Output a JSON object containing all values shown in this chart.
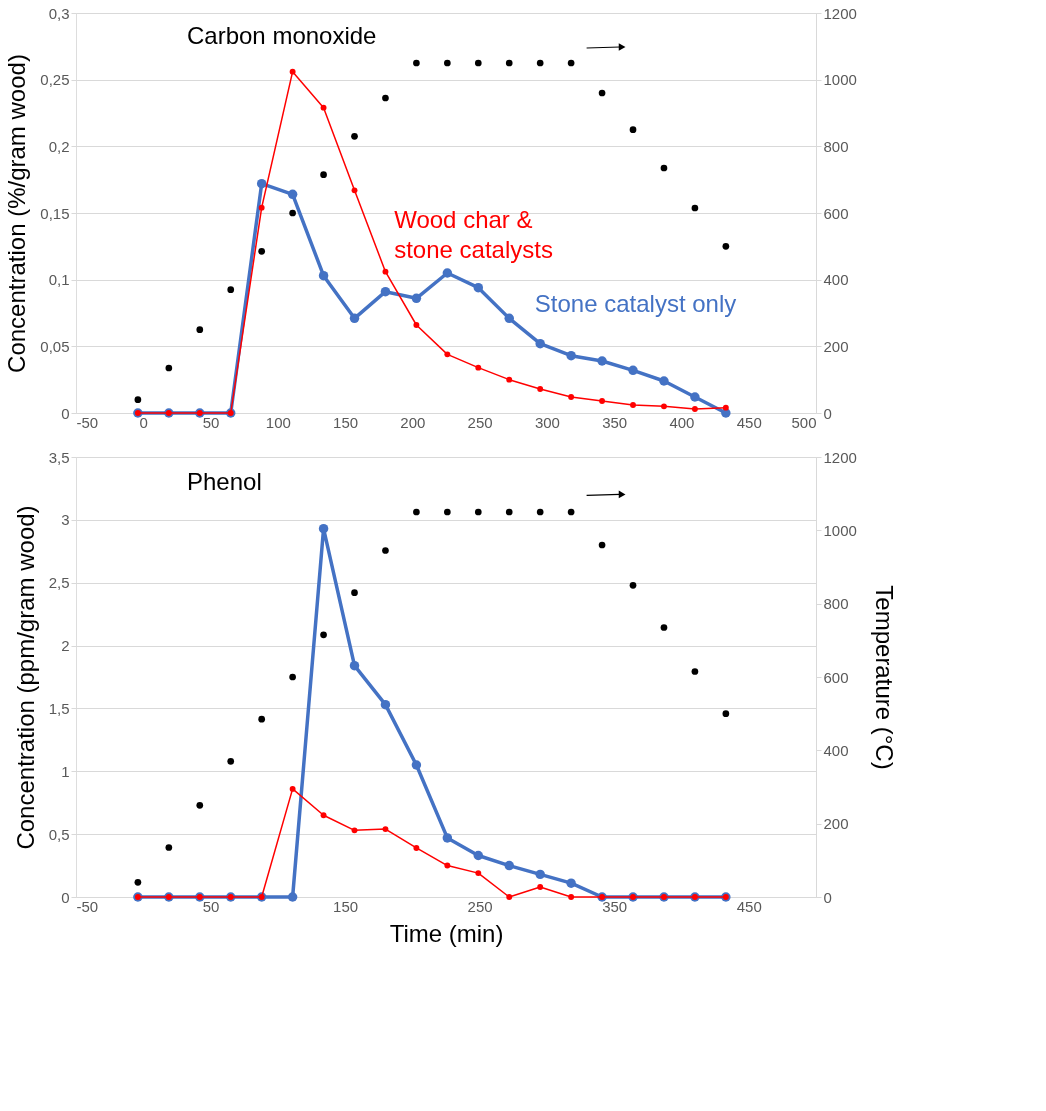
{
  "chart_data": [
    {
      "type": "line",
      "title": "Carbon monoxide",
      "ylabel": "Concentration (%/gram wood)",
      "x": [
        -4,
        19,
        42,
        65,
        88,
        111,
        134,
        157,
        180,
        203,
        226,
        249,
        272,
        295,
        318,
        341,
        364,
        387,
        410,
        433
      ],
      "series": [
        {
          "type": "scatter",
          "axis": "y2",
          "color": "#000000",
          "values": [
            40,
            135,
            250,
            370,
            485,
            600,
            715,
            830,
            945,
            1050,
            1050,
            1050,
            1050,
            1050,
            1050,
            960,
            850,
            735,
            615,
            500
          ]
        },
        {
          "name": "Stone catalyst only",
          "color": "#4472c4",
          "values": [
            0,
            0,
            0,
            0,
            0.172,
            0.164,
            0.103,
            0.071,
            0.091,
            0.086,
            0.105,
            0.094,
            0.071,
            0.052,
            0.043,
            0.039,
            0.032,
            0.024,
            0.012,
            0
          ]
        },
        {
          "name": "Wood char & stone catalysts",
          "color": "#ff0000",
          "values": [
            0,
            0,
            0,
            0,
            0.154,
            0.256,
            0.229,
            0.167,
            0.106,
            0.066,
            0.044,
            0.034,
            0.025,
            0.018,
            0.012,
            0.009,
            0.006,
            0.005,
            0.003,
            0.004
          ]
        }
      ],
      "xlim": [
        -50,
        500
      ],
      "xticks": [
        -50,
        0,
        50,
        100,
        150,
        200,
        250,
        300,
        350,
        400,
        450,
        500
      ],
      "ylim": [
        0,
        0.3
      ],
      "yticks": [
        0,
        {
          "value": 0.05,
          "label": "0,05"
        },
        {
          "value": 0.1,
          "label": "0,1"
        },
        {
          "value": 0.15,
          "label": "0,15"
        },
        {
          "value": 0.2,
          "label": "0,2"
        },
        {
          "value": 0.25,
          "label": "0,25"
        },
        {
          "value": 0.3,
          "label": "0,3"
        }
      ],
      "y2lim": [
        0,
        1200
      ],
      "y2ticks": [
        0,
        200,
        400,
        600,
        800,
        1000,
        1200
      ],
      "grid": "y",
      "marker": "circle",
      "line_style": "solid"
    },
    {
      "type": "line",
      "title": "Phenol",
      "xlabel": "Time (min)",
      "ylabel": "Concentration (ppm/gram wood)",
      "y2label": "Temperature (°C)",
      "x": [
        -4,
        19,
        42,
        65,
        88,
        111,
        134,
        157,
        180,
        203,
        226,
        249,
        272,
        295,
        318,
        341,
        364,
        387,
        410,
        433
      ],
      "series": [
        {
          "type": "scatter",
          "axis": "y2",
          "color": "#000000",
          "values": [
            40,
            135,
            250,
            370,
            485,
            600,
            715,
            830,
            945,
            1050,
            1050,
            1050,
            1050,
            1050,
            1050,
            960,
            850,
            735,
            615,
            500
          ]
        },
        {
          "color": "#4472c4",
          "values": [
            0,
            0,
            0,
            0,
            0,
            0,
            2.93,
            1.84,
            1.53,
            1.05,
            0.47,
            0.33,
            0.25,
            0.18,
            0.11,
            0,
            0,
            0,
            0,
            0
          ]
        },
        {
          "color": "#ff0000",
          "values": [
            0,
            0,
            0,
            0,
            0,
            0.86,
            0.65,
            0.53,
            0.54,
            0.39,
            0.25,
            0.19,
            0,
            0.08,
            0,
            0,
            0,
            0,
            0,
            0
          ]
        }
      ],
      "xlim": [
        -50,
        500
      ],
      "xticks": [
        -50,
        50,
        150,
        250,
        350,
        450
      ],
      "ylim": [
        0,
        3.5
      ],
      "yticks": [
        0,
        {
          "value": 0.5,
          "label": "0,5"
        },
        1,
        {
          "value": 1.5,
          "label": "1,5"
        },
        2,
        {
          "value": 2.5,
          "label": "2,5"
        },
        3,
        {
          "value": 3.5,
          "label": "3,5"
        }
      ],
      "y2lim": [
        0,
        1200
      ],
      "y2ticks": [
        0,
        200,
        400,
        600,
        800,
        1000,
        1200
      ],
      "grid": "y",
      "marker": "circle",
      "line_style": "solid"
    }
  ]
}
